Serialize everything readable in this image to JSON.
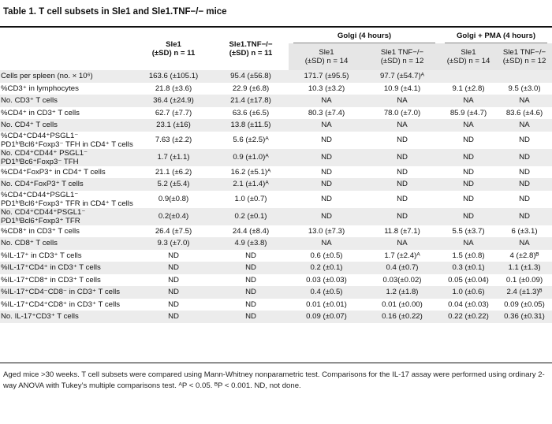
{
  "title": "Table 1. T cell subsets in Sle1 and Sle1.TNF−/− mice",
  "header": {
    "col1_name": "Sle1",
    "col1_sd": "(±SD) n = 11",
    "col2_name": "Sle1.TNF−/−",
    "col2_sd": "(±SD) n = 11",
    "group1": "Golgi (4 hours)",
    "group2": "Golgi + PMA (4 hours)",
    "sub1_name": "Sle1",
    "sub1_sd": "(±SD) n = 14",
    "sub2_name": "Sle1 TNF−/−",
    "sub2_sd": "(±SD) n = 12",
    "sub3_name": "Sle1",
    "sub3_sd": "(±SD) n = 14",
    "sub4_name": "Sle1 TNF−/−",
    "sub4_sd": "(±SD) n = 12"
  },
  "rows": [
    {
      "label": "Cells per spleen (no. × 10⁶)",
      "c1": "163.6 (±105.1)",
      "c2": "95.4 (±56.8)",
      "c3": "171.7 (±95.5)",
      "c4": "97.7 (±54.7)ᴬ",
      "c5": "",
      "c6": ""
    },
    {
      "label": "%CD3⁺ in lymphocytes",
      "c1": "21.8 (±3.6)",
      "c2": "22.9 (±6.8)",
      "c3": "10.3 (±3.2)",
      "c4": "10.9 (±4.1)",
      "c5": "9.1 (±2.8)",
      "c6": "9.5 (±3.0)"
    },
    {
      "label": "No. CD3⁺ T cells",
      "c1": "36.4 (±24.9)",
      "c2": "21.4 (±17.8)",
      "c3": "NA",
      "c4": "NA",
      "c5": "NA",
      "c6": "NA"
    },
    {
      "label": "%CD4⁺ in CD3⁺ T cells",
      "c1": "62.7 (±7.7)",
      "c2": "63.6 (±6.5)",
      "c3": "80.3 (±7.4)",
      "c4": "78.0 (±7.0)",
      "c5": "85.9 (±4.7)",
      "c6": "83.6 (±4.6)"
    },
    {
      "label": "No. CD4⁺ T cells",
      "c1": "23.1 (±16)",
      "c2": "13.8 (±11.5)",
      "c3": "NA",
      "c4": "NA",
      "c5": "NA",
      "c6": "NA"
    },
    {
      "label": "%CD4⁺CD44⁺PSGL1⁻ PD1ʰⁱBcl6⁺Foxp3⁻ TFH in CD4⁺ T cells",
      "c1": "7.63 (±2.2)",
      "c2": "5.6 (±2.5)ᴬ",
      "c3": "ND",
      "c4": "ND",
      "c5": "ND",
      "c6": "ND"
    },
    {
      "label": "No. CD4⁺CD44⁺ PSGL1⁻ PD1ʰⁱBc6⁺Foxp3⁻ TFH",
      "c1": "1.7 (±1.1)",
      "c2": "0.9 (±1.0)ᴬ",
      "c3": "ND",
      "c4": "ND",
      "c5": "ND",
      "c6": "ND"
    },
    {
      "label": "%CD4⁺FoxP3⁺ in CD4⁺ T cells",
      "c1": "21.1 (±6.2)",
      "c2": "16.2 (±5.1)ᴬ",
      "c3": "ND",
      "c4": "ND",
      "c5": "ND",
      "c6": "ND"
    },
    {
      "label": "No. CD4⁺FoxP3⁺ T cells",
      "c1": "5.2 (±5.4)",
      "c2": "2.1 (±1.4)ᴬ",
      "c3": "ND",
      "c4": "ND",
      "c5": "ND",
      "c6": "ND"
    },
    {
      "label": "%CD4⁺CD44⁺PSGL1⁻ PD1ʰⁱBcl6⁺Foxp3⁺ TFR in CD4⁺ T cells",
      "c1": "0.9(±0.8)",
      "c2": "1.0 (±0.7)",
      "c3": "ND",
      "c4": "ND",
      "c5": "ND",
      "c6": "ND"
    },
    {
      "label": "No. CD4⁺CD44⁺PSGL1⁻ PD1ʰⁱBcl6⁺Foxp3⁺ TFR",
      "c1": "0.2(±0.4)",
      "c2": "0.2 (±0.1)",
      "c3": "ND",
      "c4": "ND",
      "c5": "ND",
      "c6": "ND"
    },
    {
      "label": "%CD8⁺ in CD3⁺ T cells",
      "c1": "26.4 (±7.5)",
      "c2": "24.4 (±8.4)",
      "c3": "13.0 (±7.3)",
      "c4": "11.8 (±7.1)",
      "c5": "5.5 (±3.7)",
      "c6": "6 (±3.1)"
    },
    {
      "label": "No. CD8⁺ T cells",
      "c1": "9.3 (±7.0)",
      "c2": "4.9 (±3.8)",
      "c3": "NA",
      "c4": "NA",
      "c5": "NA",
      "c6": "NA"
    },
    {
      "label": "%IL-17⁺ in CD3⁺ T cells",
      "c1": "ND",
      "c2": "ND",
      "c3": "0.6 (±0.5)",
      "c4": "1.7 (±2.4)ᴬ",
      "c5": "1.5 (±0.8)",
      "c6": "4 (±2.8)ᴮ"
    },
    {
      "label": "%IL-17⁺CD4⁺ in CD3⁺ T cells",
      "c1": "ND",
      "c2": "ND",
      "c3": "0.2 (±0.1)",
      "c4": "0.4 (±0.7)",
      "c5": "0.3 (±0.1)",
      "c6": "1.1 (±1.3)"
    },
    {
      "label": "%IL-17⁺CD8⁺ in CD3⁺ T cells",
      "c1": "ND",
      "c2": "ND",
      "c3": "0.03 (±0.03)",
      "c4": "0.03(±0.02)",
      "c5": "0.05 (±0.04)",
      "c6": "0.1 (±0.09)"
    },
    {
      "label": "%IL-17⁺CD4⁻CD8⁻ in CD3⁺ T cells",
      "c1": "ND",
      "c2": "ND",
      "c3": "0.4 (±0.5)",
      "c4": "1.2 (±1.8)",
      "c5": "1.0 (±0.6)",
      "c6": "2.4 (±1.3)ᴮ"
    },
    {
      "label": "%IL-17⁺CD4⁺CD8⁺ in CD3⁺ T cells",
      "c1": "ND",
      "c2": "ND",
      "c3": "0.01 (±0.01)",
      "c4": "0.01 (±0.00)",
      "c5": "0.04 (±0.03)",
      "c6": "0.09 (±0.05)"
    },
    {
      "label": "No. IL-17⁺CD3⁺ T cells",
      "c1": "ND",
      "c2": "ND",
      "c3": "0.09 (±0.07)",
      "c4": "0.16 (±0.22)",
      "c5": "0.22 (±0.22)",
      "c6": "0.36 (±0.31)"
    }
  ],
  "footnote": "Aged mice >30 weeks. T cell subsets were compared using Mann-Whitney nonparametric test. Comparisons for the IL-17 assay were performed using ordinary 2-way ANOVA with Tukey’s multiple comparisons test. ᴬP < 0.05. ᴮP < 0.001. ND, not done."
}
